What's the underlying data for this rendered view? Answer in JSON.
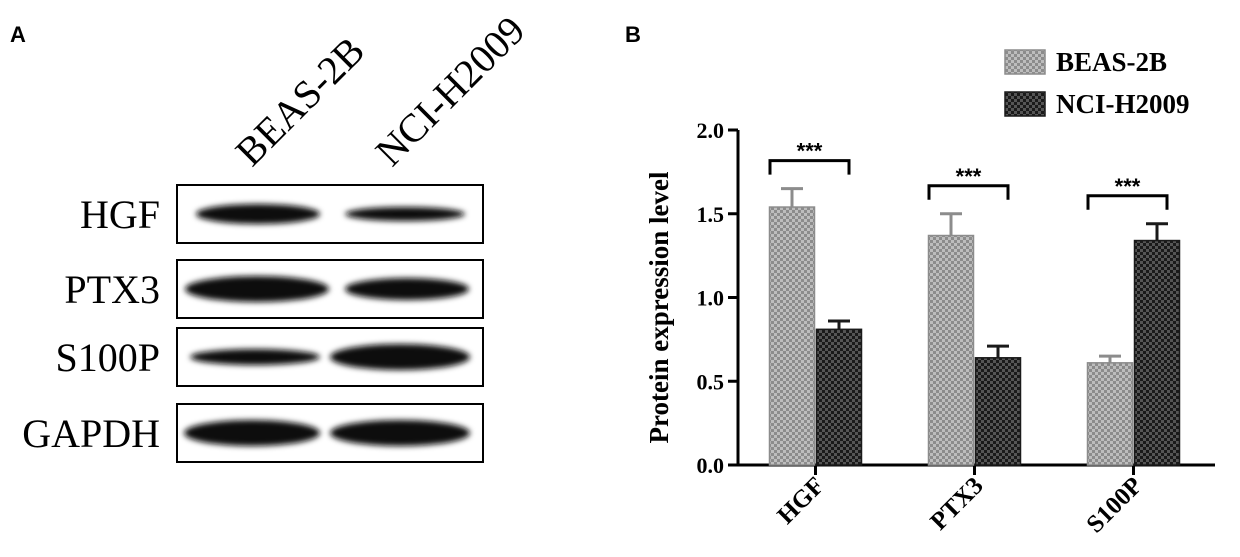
{
  "panel_a": {
    "label": "A",
    "columns": [
      "BEAS-2B",
      "NCI-H2009"
    ],
    "rows": [
      "HGF",
      "PTX3",
      "S100P",
      "GAPDH"
    ]
  },
  "chart_data": {
    "type": "bar",
    "panel_label": "B",
    "ylabel": "Protein expression level",
    "categories": [
      "HGF",
      "PTX3",
      "S100P"
    ],
    "series": [
      {
        "name": "BEAS-2B",
        "color": "#8c8c8c",
        "values": [
          1.54,
          1.37,
          0.61
        ],
        "errors": [
          0.11,
          0.13,
          0.04
        ]
      },
      {
        "name": "NCI-H2009",
        "color": "#1a1a1a",
        "values": [
          0.81,
          0.64,
          1.34
        ],
        "errors": [
          0.05,
          0.07,
          0.1
        ]
      }
    ],
    "annotations": [
      "***",
      "***",
      "***"
    ],
    "ylim": [
      0,
      2
    ],
    "yticks": [
      {
        "value": 0,
        "label": "0.0"
      },
      {
        "value": 0.5,
        "label": "0.5"
      },
      {
        "value": 1,
        "label": "1.0"
      },
      {
        "value": 1.5,
        "label": "1.5"
      },
      {
        "value": 2,
        "label": "2.0"
      }
    ],
    "legend": "top-right"
  }
}
